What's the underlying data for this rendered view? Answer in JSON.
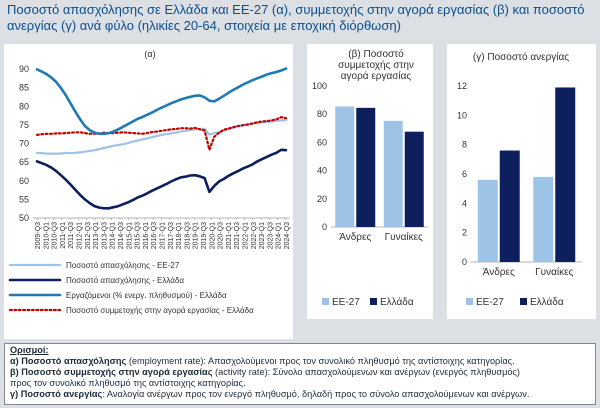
{
  "title": {
    "line1": "Ποσοστό απασχόλησης σε Ελλάδα και ΕΕ-27 (α), συμμετοχής  στην αγορά εργασίας (β) και ποσοστό",
    "line2": "ανεργίας (γ) ανά φύλο (ηλικίες 20-64,  στοιχεία με εποχική διόρθωση)"
  },
  "colors": {
    "light": "#9dc3e6",
    "navy": "#0d1f5c",
    "teal": "#1f7ab3",
    "red": "#c00000",
    "panel": "#dcdfe3"
  },
  "chart_data": [
    {
      "type": "line",
      "panel_label": "(α)",
      "x_ticks": [
        "2009-Q3",
        "2010-Q1",
        "2010-Q3",
        "2011-Q1",
        "2011-Q3",
        "2012-Q1",
        "2012-Q3",
        "2013-Q1",
        "2013-Q3",
        "2014-Q1",
        "2014-Q3",
        "2015-Q1",
        "2015-Q3",
        "2016-Q1",
        "2016-Q3",
        "2017-Q1",
        "2017-Q3",
        "2018-Q1",
        "2018-Q3",
        "2019-Q1",
        "2019-Q3",
        "2020-Q1",
        "2020-Q3",
        "2021-Q1",
        "2021-Q3",
        "2022-Q1",
        "2022-Q3",
        "2023-Q1",
        "2023-Q3",
        "2024-Q1",
        "2024-Q3"
      ],
      "ylim": [
        50,
        90
      ],
      "yticks": [
        50,
        55,
        60,
        65,
        70,
        75,
        80,
        85,
        90
      ],
      "grid": false,
      "legend_position": "bottom",
      "series": [
        {
          "name": "Ποσοστό απασχόλησης - ΕΕ-27",
          "color": "light",
          "dash": "solid",
          "values": [
            67.5,
            67.4,
            67.3,
            67.3,
            67.3,
            67.3,
            67.5,
            67.4,
            67.5,
            67.6,
            67.8,
            68.0,
            68.2,
            68.5,
            68.8,
            69.1,
            69.4,
            69.6,
            69.8,
            70.1,
            70.5,
            70.8,
            71.1,
            71.4,
            71.7,
            72.0,
            72.3,
            72.5,
            72.7,
            72.9,
            73.2,
            73.4,
            73.6,
            73.8,
            73.9,
            73.9,
            72.4,
            72.8,
            73.0,
            73.5,
            73.8,
            74.2,
            74.6,
            74.9,
            75.1,
            75.3,
            75.5,
            75.7,
            75.8,
            75.9,
            76.1,
            76.2,
            76.3
          ]
        },
        {
          "name": "Ποσοστό απασχόλησης - Ελλάδα",
          "color": "navy",
          "dash": "solid",
          "values": [
            65.2,
            64.7,
            64.2,
            63.5,
            62.6,
            61.5,
            60.3,
            59.0,
            57.6,
            56.2,
            55.0,
            54.0,
            53.2,
            52.8,
            52.6,
            52.6,
            52.9,
            53.2,
            53.7,
            54.2,
            54.8,
            55.5,
            56.0,
            56.6,
            57.3,
            57.9,
            58.5,
            59.1,
            59.8,
            60.4,
            60.9,
            61.1,
            61.4,
            61.5,
            61.2,
            60.7,
            57.0,
            58.6,
            59.8,
            60.5,
            61.3,
            62.0,
            62.6,
            63.3,
            63.8,
            64.4,
            65.2,
            65.8,
            66.4,
            67.0,
            67.5,
            68.3,
            68.2
          ]
        },
        {
          "name": "Εργαζόμενοι (% ενεργ. πληθυσμού) - Ελλάδα",
          "color": "teal",
          "dash": "solid",
          "values": [
            89.9,
            89.3,
            88.6,
            87.7,
            86.5,
            84.9,
            83.0,
            80.8,
            78.6,
            76.5,
            74.7,
            73.6,
            72.9,
            72.6,
            72.6,
            72.8,
            73.2,
            73.8,
            74.5,
            75.2,
            75.9,
            76.6,
            77.1,
            77.7,
            78.3,
            79.0,
            79.6,
            80.2,
            80.8,
            81.3,
            81.8,
            82.2,
            82.5,
            82.8,
            82.9,
            82.4,
            81.5,
            81.3,
            82.0,
            82.8,
            83.6,
            84.4,
            85.1,
            85.8,
            86.4,
            87.0,
            87.5,
            88.0,
            88.5,
            88.9,
            89.2,
            89.6,
            90.1
          ]
        },
        {
          "name": "Ποσοστό συμμετοχής στην αγορά εργασίας - Ελλάδα",
          "color": "red",
          "dash": "dotted",
          "values": [
            72.3,
            72.5,
            72.6,
            72.6,
            72.7,
            72.7,
            72.8,
            72.9,
            73.0,
            73.0,
            72.8,
            72.6,
            72.6,
            72.7,
            72.9,
            72.8,
            72.8,
            72.9,
            73.0,
            72.9,
            72.8,
            72.7,
            72.6,
            72.8,
            73.1,
            73.2,
            73.4,
            73.6,
            73.8,
            73.9,
            74.1,
            74.1,
            74.0,
            74.2,
            73.8,
            73.5,
            68.3,
            71.8,
            72.9,
            73.7,
            74.0,
            74.4,
            74.7,
            74.9,
            75.1,
            75.4,
            75.7,
            75.9,
            76.0,
            76.2,
            76.5,
            77.1,
            76.8
          ]
        }
      ]
    },
    {
      "type": "bar",
      "panel_label": "(β) Ποσοστό συμμετοχής στην αγορά εργασίας",
      "categories": [
        "Άνδρες",
        "Γυναίκες"
      ],
      "ylim": [
        0,
        100
      ],
      "yticks": [
        0,
        20,
        40,
        60,
        80,
        100
      ],
      "legend_position": "bottom",
      "series": [
        {
          "name": "ΕΕ-27",
          "color": "light",
          "values": [
            85.5,
            75.3
          ]
        },
        {
          "name": "Ελλάδα",
          "color": "navy",
          "values": [
            84.5,
            67.6
          ]
        }
      ]
    },
    {
      "type": "bar",
      "panel_label": "(γ) Ποσοστό ανεργίας",
      "categories": [
        "Άνδρες",
        "Γυναίκες"
      ],
      "ylim": [
        0,
        12
      ],
      "yticks": [
        0,
        2,
        4,
        6,
        8,
        10,
        12
      ],
      "legend_position": "bottom",
      "series": [
        {
          "name": "ΕΕ-27",
          "color": "light",
          "values": [
            5.6,
            5.8
          ]
        },
        {
          "name": "Ελλάδα",
          "color": "navy",
          "values": [
            7.6,
            11.9
          ]
        }
      ]
    }
  ],
  "definitions": {
    "heading": "Ορισμοί:",
    "a_term": "α) Ποσοστό απασχόλησης",
    "a_text": " (employment rate): Απασχολούμενοι προς τον συνολικό πληθυσμό της αντίστοιχης κατηγορίας.",
    "b_term": "β) Ποσοστό συμμετοχής στην αγορά εργασίας",
    "b_text": " (activity rate): Σύνολο απασχολούμενων και ανέργων (ενεργός πληθυσμός)",
    "b_text2": "προς τον συνολικό πληθυσμό της αντίστοιχης κατηγορίας.",
    "c_term": "γ) Ποσοστό ανεργίας",
    "c_text": ": Αναλογία ανέργων προς τον ενεργό πληθυσμό, δηλαδή προς το σύνολο απασχολούμενων και ανέργων."
  }
}
